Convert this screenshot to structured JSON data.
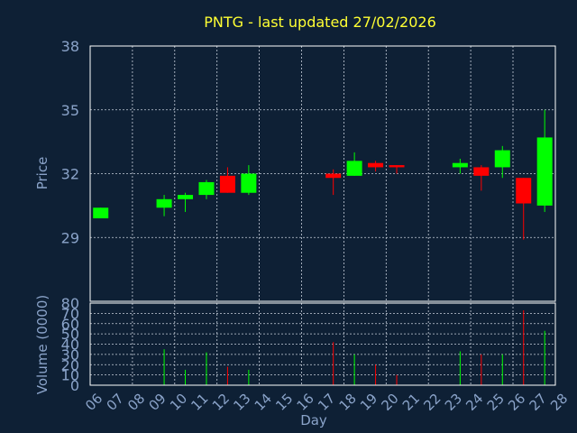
{
  "chart_data": {
    "type": "candlestick",
    "title": "PNTG - last updated 27/02/2026",
    "colors": {
      "background": "#0e2035",
      "frame": "#ffffff",
      "grid": "#c8d0dc",
      "axis_text": "#8aa3c9",
      "title": "#ffff33",
      "up": "#00ff00",
      "down": "#ff0000"
    },
    "price_panel": {
      "ylabel": "Price",
      "ylim": [
        26,
        38
      ],
      "yticks": [
        "29",
        "32",
        "35",
        "38"
      ],
      "ytick_values": [
        29,
        32,
        35,
        38
      ],
      "grid": true
    },
    "volume_panel": {
      "ylabel": "Volume (0000)",
      "ylim": [
        0,
        80
      ],
      "yticks": [
        "0",
        "10",
        "20",
        "30",
        "40",
        "50",
        "60",
        "70",
        "80"
      ],
      "ytick_values": [
        0,
        10,
        20,
        30,
        40,
        50,
        60,
        70,
        80
      ],
      "grid": true
    },
    "xlabel": "Day",
    "x_tick_labels": [
      "06",
      "07",
      "08",
      "09",
      "10",
      "11",
      "12",
      "13",
      "14",
      "15",
      "16",
      "17",
      "18",
      "19",
      "20",
      "21",
      "22",
      "23",
      "24",
      "25",
      "26",
      "27",
      "28"
    ],
    "candles": [
      {
        "day": "06",
        "open": 29.9,
        "close": 30.4,
        "high": 30.4,
        "low": 29.9,
        "volume": 0
      },
      {
        "day": "09",
        "open": 30.4,
        "close": 30.8,
        "high": 31.0,
        "low": 30.0,
        "volume": 35
      },
      {
        "day": "10",
        "open": 30.8,
        "close": 31.0,
        "high": 31.1,
        "low": 30.2,
        "volume": 15
      },
      {
        "day": "11",
        "open": 31.0,
        "close": 31.6,
        "high": 31.7,
        "low": 30.8,
        "volume": 32
      },
      {
        "day": "12",
        "open": 31.9,
        "close": 31.1,
        "high": 32.3,
        "low": 31.1,
        "volume": 18
      },
      {
        "day": "13",
        "open": 31.1,
        "close": 32.0,
        "high": 32.4,
        "low": 31.0,
        "volume": 15
      },
      {
        "day": "17",
        "open": 32.0,
        "close": 31.8,
        "high": 32.2,
        "low": 31.0,
        "volume": 42
      },
      {
        "day": "18",
        "open": 31.9,
        "close": 32.6,
        "high": 33.0,
        "low": 31.9,
        "volume": 30
      },
      {
        "day": "19",
        "open": 32.5,
        "close": 32.3,
        "high": 32.6,
        "low": 32.1,
        "volume": 20
      },
      {
        "day": "20",
        "open": 32.4,
        "close": 32.3,
        "high": 32.4,
        "low": 32.0,
        "volume": 10
      },
      {
        "day": "23",
        "open": 32.3,
        "close": 32.5,
        "high": 32.7,
        "low": 32.0,
        "volume": 33
      },
      {
        "day": "24",
        "open": 32.3,
        "close": 31.9,
        "high": 32.4,
        "low": 31.2,
        "volume": 30
      },
      {
        "day": "25",
        "open": 32.3,
        "close": 33.1,
        "high": 33.3,
        "low": 31.8,
        "volume": 30
      },
      {
        "day": "26",
        "open": 31.8,
        "close": 30.6,
        "high": 31.8,
        "low": 28.9,
        "volume": 73
      },
      {
        "day": "27",
        "open": 30.5,
        "close": 33.7,
        "high": 35.0,
        "low": 30.2,
        "volume": 53
      }
    ]
  }
}
